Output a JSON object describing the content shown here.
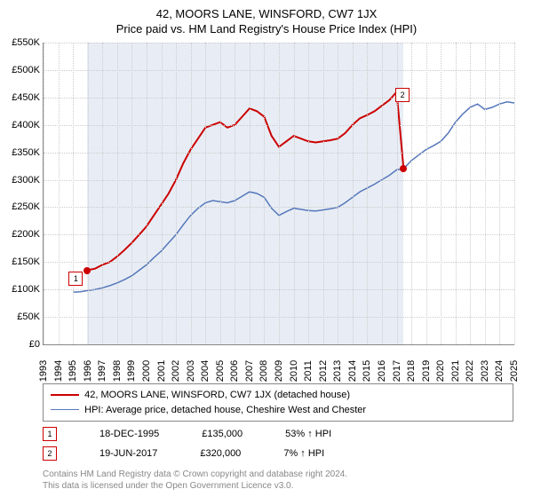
{
  "title1": "42, MOORS LANE, WINSFORD, CW7 1JX",
  "title2": "Price paid vs. HM Land Registry's House Price Index (HPI)",
  "chart": {
    "type": "line",
    "ylim": [
      0,
      550
    ],
    "ytick_step": 50,
    "ytick_prefix": "£",
    "ytick_suffix": "K",
    "ymax_label": "£550K",
    "xlim": [
      1993,
      2025
    ],
    "xtick_step": 1,
    "grid_color": "#cccccc",
    "background_color": "#ffffff",
    "shaded_color": "#e8edf5",
    "shaded_range": [
      1995.96,
      2017.47
    ],
    "series1": {
      "name": "42, MOORS LANE, WINSFORD, CW7 1JX (detached house)",
      "color": "#cc0000",
      "width": 2,
      "pts": [
        [
          1995.96,
          135
        ],
        [
          1996.5,
          138
        ],
        [
          1997,
          145
        ],
        [
          1997.5,
          150
        ],
        [
          1998,
          160
        ],
        [
          1998.5,
          172
        ],
        [
          1999,
          185
        ],
        [
          1999.5,
          200
        ],
        [
          2000,
          215
        ],
        [
          2000.5,
          235
        ],
        [
          2001,
          255
        ],
        [
          2001.5,
          275
        ],
        [
          2002,
          300
        ],
        [
          2002.5,
          330
        ],
        [
          2003,
          355
        ],
        [
          2003.5,
          375
        ],
        [
          2004,
          395
        ],
        [
          2004.5,
          400
        ],
        [
          2005,
          405
        ],
        [
          2005.5,
          395
        ],
        [
          2006,
          400
        ],
        [
          2006.5,
          415
        ],
        [
          2007,
          430
        ],
        [
          2007.5,
          425
        ],
        [
          2008,
          415
        ],
        [
          2008.5,
          380
        ],
        [
          2009,
          360
        ],
        [
          2009.5,
          370
        ],
        [
          2010,
          380
        ],
        [
          2010.5,
          375
        ],
        [
          2011,
          370
        ],
        [
          2011.5,
          368
        ],
        [
          2012,
          370
        ],
        [
          2012.5,
          372
        ],
        [
          2013,
          375
        ],
        [
          2013.5,
          385
        ],
        [
          2014,
          400
        ],
        [
          2014.5,
          412
        ],
        [
          2015,
          418
        ],
        [
          2015.5,
          425
        ],
        [
          2016,
          435
        ],
        [
          2016.5,
          445
        ],
        [
          2017,
          460
        ],
        [
          2017.47,
          320
        ],
        [
          2017.48,
          320
        ]
      ]
    },
    "series2": {
      "name": "HPI: Average price, detached house, Cheshire West and Chester",
      "color": "#5577bb",
      "width": 1.5,
      "pts": [
        [
          1995,
          95
        ],
        [
          1995.5,
          96
        ],
        [
          1996,
          98
        ],
        [
          1996.5,
          100
        ],
        [
          1997,
          103
        ],
        [
          1997.5,
          107
        ],
        [
          1998,
          112
        ],
        [
          1998.5,
          118
        ],
        [
          1999,
          125
        ],
        [
          1999.5,
          135
        ],
        [
          2000,
          145
        ],
        [
          2000.5,
          158
        ],
        [
          2001,
          170
        ],
        [
          2001.5,
          185
        ],
        [
          2002,
          200
        ],
        [
          2002.5,
          218
        ],
        [
          2003,
          235
        ],
        [
          2003.5,
          248
        ],
        [
          2004,
          258
        ],
        [
          2004.5,
          262
        ],
        [
          2005,
          260
        ],
        [
          2005.5,
          258
        ],
        [
          2006,
          262
        ],
        [
          2006.5,
          270
        ],
        [
          2007,
          278
        ],
        [
          2007.5,
          275
        ],
        [
          2008,
          268
        ],
        [
          2008.5,
          248
        ],
        [
          2009,
          235
        ],
        [
          2009.5,
          242
        ],
        [
          2010,
          248
        ],
        [
          2010.5,
          246
        ],
        [
          2011,
          244
        ],
        [
          2011.5,
          243
        ],
        [
          2012,
          245
        ],
        [
          2012.5,
          247
        ],
        [
          2013,
          250
        ],
        [
          2013.5,
          258
        ],
        [
          2014,
          268
        ],
        [
          2014.5,
          278
        ],
        [
          2015,
          285
        ],
        [
          2015.5,
          292
        ],
        [
          2016,
          300
        ],
        [
          2016.5,
          308
        ],
        [
          2017,
          318
        ],
        [
          2017.47,
          320
        ],
        [
          2018,
          335
        ],
        [
          2018.5,
          345
        ],
        [
          2019,
          355
        ],
        [
          2019.5,
          362
        ],
        [
          2020,
          370
        ],
        [
          2020.5,
          385
        ],
        [
          2021,
          405
        ],
        [
          2021.5,
          420
        ],
        [
          2022,
          432
        ],
        [
          2022.5,
          438
        ],
        [
          2023,
          428
        ],
        [
          2023.5,
          432
        ],
        [
          2024,
          438
        ],
        [
          2024.5,
          442
        ],
        [
          2025,
          440
        ]
      ]
    },
    "markers": [
      {
        "num": "1",
        "dot_x": 1995.96,
        "dot_y": 135,
        "box_x": 1995.2,
        "box_y": 120
      },
      {
        "num": "2",
        "dot_x": 2017.47,
        "dot_y": 320,
        "box_x": 2017.4,
        "box_y": 455
      }
    ]
  },
  "legend": {
    "s1": "42, MOORS LANE, WINSFORD, CW7 1JX (detached house)",
    "s2": "HPI: Average price, detached house, Cheshire West and Chester"
  },
  "transactions": [
    {
      "num": "1",
      "date": "18-DEC-1995",
      "price": "£135,000",
      "pct": "53% ↑ HPI"
    },
    {
      "num": "2",
      "date": "19-JUN-2017",
      "price": "£320,000",
      "pct": "7% ↑ HPI"
    }
  ],
  "footer1": "Contains HM Land Registry data © Crown copyright and database right 2024.",
  "footer2": "This data is licensed under the Open Government Licence v3.0."
}
